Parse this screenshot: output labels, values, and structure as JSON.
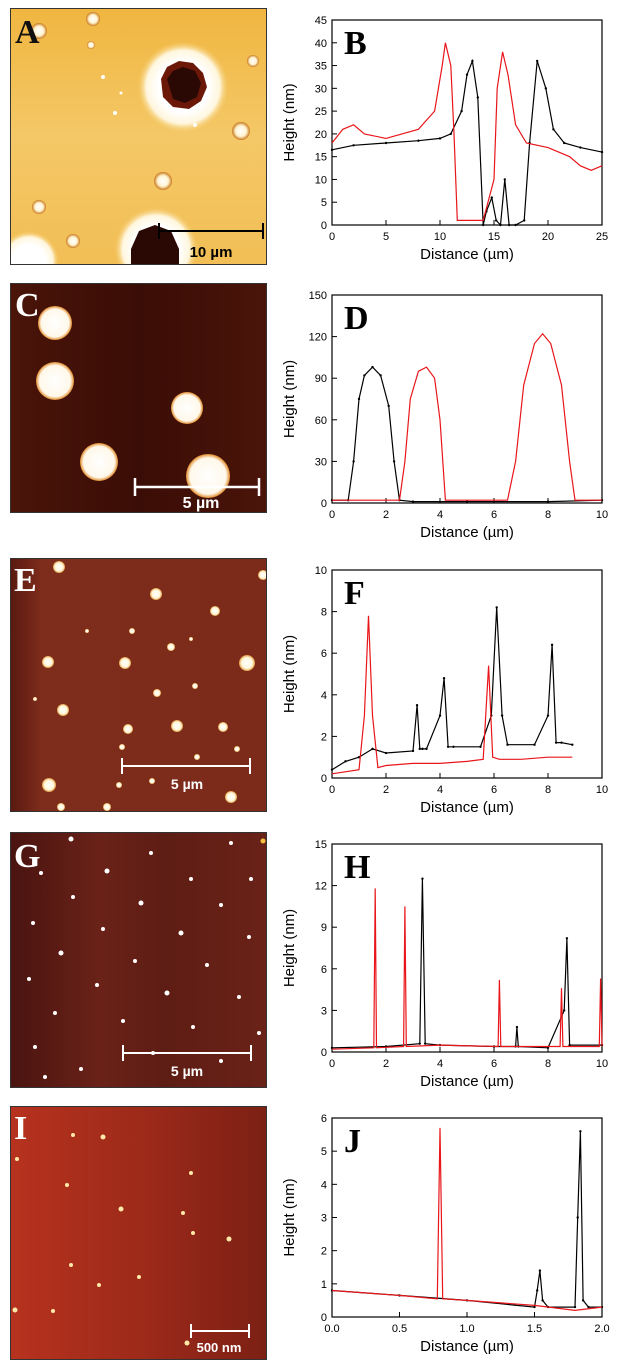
{
  "figure": {
    "panels": [
      {
        "id": "A",
        "letter": "A",
        "scalebar": "10 µm",
        "letter_color": "#111111",
        "scalebar_color": "#000000"
      },
      {
        "id": "C",
        "letter": "C",
        "scalebar": "5 µm",
        "letter_color": "#ffffff",
        "scalebar_color": "#ffffff"
      },
      {
        "id": "E",
        "letter": "E",
        "scalebar": "5 µm",
        "letter_color": "#ffffff",
        "scalebar_color": "#ffffff"
      },
      {
        "id": "G",
        "letter": "G",
        "scalebar": "5 µm",
        "letter_color": "#ffffff",
        "scalebar_color": "#ffffff"
      },
      {
        "id": "I",
        "letter": "I",
        "scalebar": "500 nm",
        "letter_color": "#ffffff",
        "scalebar_color": "#ffffff"
      }
    ]
  },
  "colors": {
    "black_series": "#000000",
    "red_series": "#e8161a"
  },
  "chart_data": [
    {
      "type": "line",
      "letter": "B",
      "xlabel": "Distance (µm)",
      "ylabel": "Height (nm)",
      "xlim": [
        0,
        25
      ],
      "ylim": [
        0,
        45
      ],
      "xticks": [
        0,
        5,
        10,
        15,
        20,
        25
      ],
      "yticks": [
        0,
        5,
        10,
        15,
        20,
        25,
        30,
        35,
        40,
        45
      ],
      "grid": false,
      "series": [
        {
          "color": "black",
          "x": [
            0,
            2,
            5,
            8,
            10,
            11,
            12,
            12.5,
            13,
            13.5,
            14,
            14.3,
            14.8,
            15.2,
            15.6,
            16,
            16.4,
            17,
            17.8,
            18.3,
            19,
            19.8,
            20.5,
            21.5,
            23,
            25
          ],
          "y": [
            16.5,
            17.5,
            18,
            18.5,
            19,
            20,
            25,
            33,
            36,
            28,
            0,
            3,
            6,
            1,
            0,
            10,
            0,
            0,
            1,
            18,
            36,
            30,
            21,
            18,
            17,
            16
          ]
        },
        {
          "color": "red",
          "x": [
            0,
            1,
            2,
            3,
            5,
            8,
            9.5,
            10.2,
            10.5,
            11,
            11.3,
            11.6,
            12.5,
            14,
            15,
            15.3,
            15.8,
            16.3,
            17,
            18,
            20,
            22,
            23,
            24,
            25
          ],
          "y": [
            18,
            21,
            22,
            20,
            19,
            21,
            25,
            35,
            40,
            35,
            20,
            1,
            1,
            1,
            10,
            30,
            38,
            33,
            22,
            18,
            17,
            15,
            13,
            12,
            13
          ]
        }
      ]
    },
    {
      "type": "line",
      "letter": "D",
      "xlabel": "Distance (µm)",
      "ylabel": "Height (nm)",
      "xlim": [
        0,
        10
      ],
      "ylim": [
        0,
        150
      ],
      "xticks": [
        0,
        2,
        4,
        6,
        8,
        10
      ],
      "yticks": [
        0,
        30,
        60,
        90,
        120,
        150
      ],
      "grid": false,
      "series": [
        {
          "color": "black",
          "x": [
            0,
            0.6,
            0.8,
            1.0,
            1.2,
            1.5,
            1.8,
            2.1,
            2.3,
            2.5,
            3,
            5,
            8,
            10
          ],
          "y": [
            2,
            2,
            30,
            75,
            92,
            98,
            92,
            70,
            30,
            2,
            1,
            1,
            1,
            2
          ]
        },
        {
          "color": "red",
          "x": [
            0,
            2.5,
            2.7,
            2.9,
            3.2,
            3.5,
            3.8,
            4.0,
            4.2,
            5,
            6.5,
            6.8,
            7.1,
            7.5,
            7.8,
            8.1,
            8.5,
            8.8,
            9,
            10
          ],
          "y": [
            2,
            2,
            30,
            75,
            95,
            98,
            90,
            60,
            2,
            2,
            2,
            30,
            85,
            115,
            122,
            115,
            85,
            30,
            2,
            2
          ]
        }
      ]
    },
    {
      "type": "line",
      "letter": "F",
      "xlabel": "Distance (µm)",
      "ylabel": "Height (nm)",
      "xlim": [
        0,
        10
      ],
      "ylim": [
        0,
        10
      ],
      "xticks": [
        0,
        2,
        4,
        6,
        8,
        10
      ],
      "yticks": [
        0,
        2,
        4,
        6,
        8,
        10
      ],
      "grid": false,
      "series": [
        {
          "color": "black",
          "x": [
            0,
            0.5,
            1.0,
            1.5,
            2.0,
            3.0,
            3.15,
            3.25,
            3.35,
            3.5,
            4.0,
            4.15,
            4.3,
            4.5,
            5.5,
            5.9,
            6.1,
            6.3,
            6.5,
            7.5,
            8.0,
            8.15,
            8.3,
            8.5,
            8.9
          ],
          "y": [
            0.4,
            0.8,
            1.0,
            1.4,
            1.2,
            1.3,
            3.5,
            1.4,
            1.4,
            1.4,
            3.0,
            4.8,
            1.5,
            1.5,
            1.5,
            3.0,
            8.2,
            3.0,
            1.6,
            1.6,
            3.0,
            6.4,
            1.7,
            1.7,
            1.6
          ]
        },
        {
          "color": "red",
          "x": [
            0,
            1.0,
            1.2,
            1.35,
            1.5,
            1.7,
            2.0,
            3.0,
            4.0,
            5.0,
            5.6,
            5.8,
            5.95,
            6.2,
            7.0,
            8.0,
            8.9
          ],
          "y": [
            0.2,
            0.4,
            3.0,
            7.8,
            3.0,
            0.5,
            0.6,
            0.7,
            0.7,
            0.8,
            0.9,
            5.4,
            1.0,
            0.9,
            0.9,
            1.0,
            1.0
          ]
        }
      ]
    },
    {
      "type": "line",
      "letter": "H",
      "xlabel": "Distance (µm)",
      "ylabel": "Height (nm)",
      "xlim": [
        0,
        10
      ],
      "ylim": [
        0,
        15
      ],
      "xticks": [
        0,
        2,
        4,
        6,
        8,
        10
      ],
      "yticks": [
        0,
        3,
        6,
        9,
        12,
        15
      ],
      "grid": false,
      "series": [
        {
          "color": "black",
          "x": [
            0,
            2,
            3.25,
            3.35,
            3.45,
            4,
            6,
            6.8,
            6.85,
            6.9,
            8,
            8.6,
            8.7,
            8.8,
            10
          ],
          "y": [
            0.3,
            0.4,
            0.6,
            12.5,
            0.6,
            0.5,
            0.4,
            0.4,
            1.8,
            0.4,
            0.3,
            3.0,
            8.2,
            0.5,
            0.5
          ]
        },
        {
          "color": "red",
          "x": [
            0,
            1.55,
            1.6,
            1.65,
            2.65,
            2.7,
            2.75,
            4,
            6.15,
            6.2,
            6.25,
            8.45,
            8.5,
            8.55,
            9.9,
            9.95,
            10
          ],
          "y": [
            0.2,
            0.3,
            11.8,
            0.3,
            0.4,
            10.5,
            0.4,
            0.5,
            0.4,
            5.2,
            0.4,
            0.4,
            4.6,
            0.4,
            0.4,
            5.3,
            0.4
          ]
        }
      ]
    },
    {
      "type": "line",
      "letter": "J",
      "xlabel": "Distance (µm)",
      "ylabel": "Height (nm)",
      "xlim": [
        0,
        2.0
      ],
      "ylim": [
        0,
        6
      ],
      "xticks": [
        0.0,
        0.5,
        1.0,
        1.5,
        2.0
      ],
      "yticks": [
        0,
        1,
        2,
        3,
        4,
        5,
        6
      ],
      "grid": false,
      "series": [
        {
          "color": "black",
          "x": [
            0,
            0.5,
            1.0,
            1.5,
            1.52,
            1.54,
            1.56,
            1.6,
            1.8,
            1.82,
            1.84,
            1.86,
            1.9,
            2.0
          ],
          "y": [
            0.8,
            0.65,
            0.5,
            0.3,
            0.8,
            1.4,
            0.5,
            0.3,
            0.3,
            3.0,
            5.6,
            0.5,
            0.3,
            0.3
          ]
        },
        {
          "color": "red",
          "x": [
            0,
            0.5,
            0.78,
            0.8,
            0.82,
            1.0,
            1.5,
            1.8,
            2.0
          ],
          "y": [
            0.8,
            0.65,
            0.55,
            5.7,
            0.55,
            0.5,
            0.35,
            0.2,
            0.3
          ]
        }
      ]
    }
  ]
}
